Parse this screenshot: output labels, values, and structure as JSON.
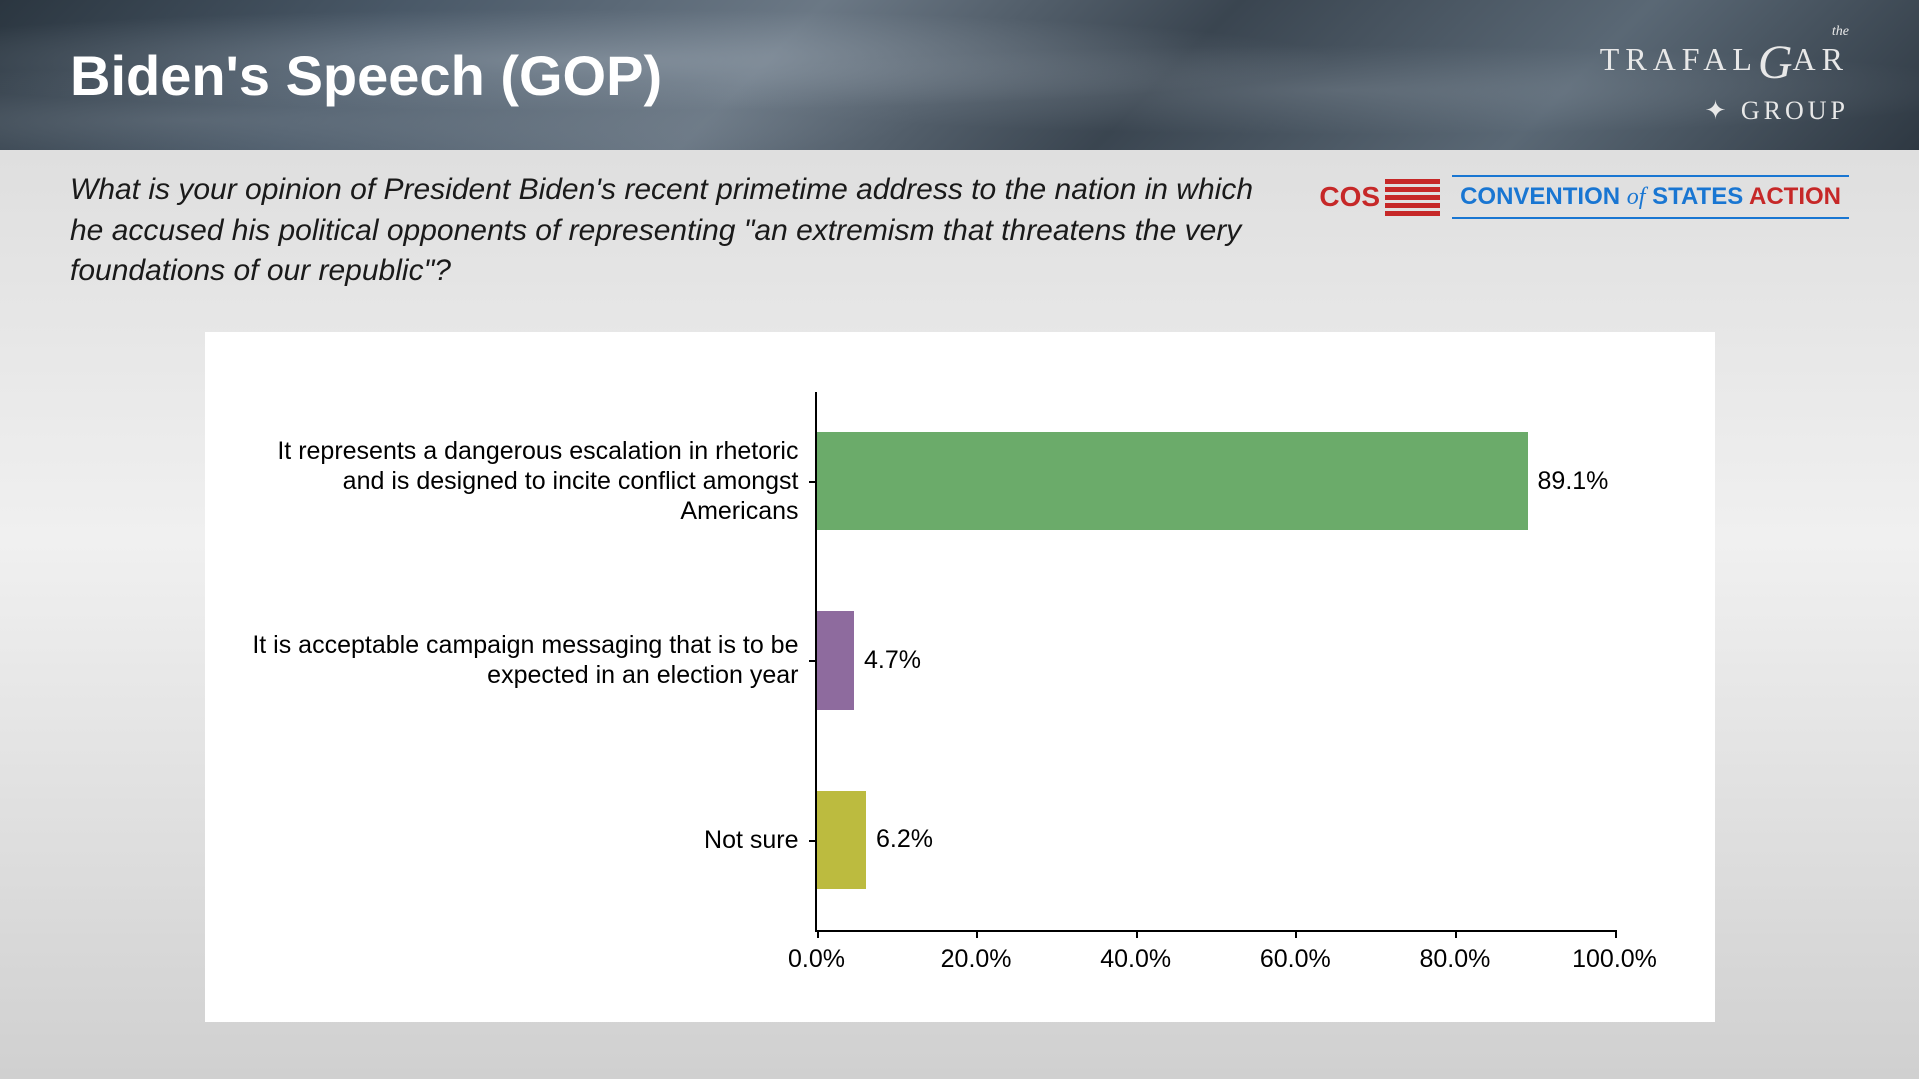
{
  "header": {
    "title": "Biden's Speech (GOP)",
    "logo_the": "the",
    "logo_text": "TRAFALGAR",
    "logo_sub": "GROUP"
  },
  "question": "What is your opinion of President Biden's recent primetime address to the nation in which he accused his political opponents of representing \"an extremism that threatens the very foundations of our republic\"?",
  "cos": {
    "cos": "COS",
    "convention": "CONVENTION",
    "of": "of",
    "states": "STATES",
    "action": "ACTION"
  },
  "chart": {
    "type": "horizontal_bar",
    "xlim": [
      0,
      100
    ],
    "xtick_step": 20,
    "xtick_labels": [
      "0.0%",
      "20.0%",
      "40.0%",
      "60.0%",
      "80.0%",
      "100.0%"
    ],
    "background_color": "#ffffff",
    "axis_color": "#000000",
    "label_fontsize": 25,
    "bar_height_ratio": 0.55,
    "categories": [
      {
        "label": "It represents a dangerous escalation in rhetoric and is designed to incite conflict amongst Americans",
        "value": 89.1,
        "value_label": "89.1%",
        "color": "#6bab6a"
      },
      {
        "label": "It is acceptable campaign messaging that is to be expected in an election year",
        "value": 4.7,
        "value_label": "4.7%",
        "color": "#8e6b9e"
      },
      {
        "label": "Not sure",
        "value": 6.2,
        "value_label": "6.2%",
        "color": "#bcbb3f"
      }
    ]
  }
}
